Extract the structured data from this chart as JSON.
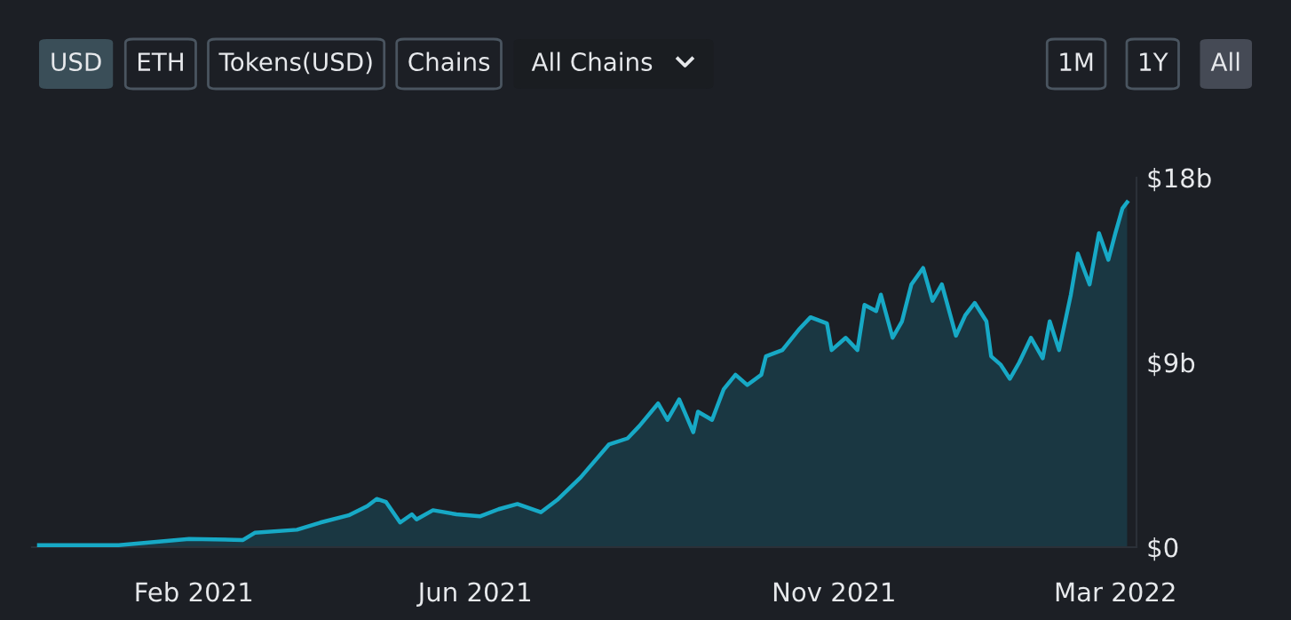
{
  "chart_data": {
    "type": "area",
    "annotations": [
      "USD",
      "ETH",
      "Tokens(USD)",
      "Chains",
      "All Chains",
      "1M",
      "1Y",
      "All"
    ],
    "x": [
      "2020-11-27",
      "2020-12-31",
      "2021-01-30",
      "2021-02-22",
      "2021-02-27",
      "2021-03-17",
      "2021-03-27",
      "2021-04-08",
      "2021-04-16",
      "2021-04-20",
      "2021-04-24",
      "2021-04-27",
      "2021-04-30",
      "2021-05-05",
      "2021-05-07",
      "2021-05-14",
      "2021-05-24",
      "2021-06-03",
      "2021-06-11",
      "2021-06-19",
      "2021-06-29",
      "2021-07-06",
      "2021-07-16",
      "2021-07-28",
      "2021-08-05",
      "2021-08-10",
      "2021-08-18",
      "2021-08-22",
      "2021-08-27",
      "2021-09-02",
      "2021-09-04",
      "2021-09-10",
      "2021-09-15",
      "2021-09-20",
      "2021-09-25",
      "2021-10-01",
      "2021-10-03",
      "2021-10-10",
      "2021-10-17",
      "2021-10-22",
      "2021-10-29",
      "2021-10-31",
      "2021-11-06",
      "2021-11-11",
      "2021-11-14",
      "2021-11-19",
      "2021-11-21",
      "2021-11-26",
      "2021-11-30",
      "2021-12-04",
      "2021-12-09",
      "2021-12-13",
      "2021-12-17",
      "2021-12-23",
      "2021-12-27",
      "2021-12-31",
      "2022-01-05",
      "2022-01-07",
      "2022-01-11",
      "2022-01-15",
      "2022-01-19",
      "2022-01-24",
      "2022-01-29",
      "2022-02-01",
      "2022-02-05",
      "2022-02-10",
      "2022-02-13",
      "2022-02-18",
      "2022-02-22",
      "2022-02-26",
      "2022-03-01",
      "2022-03-04",
      "2022-03-06"
    ],
    "series": [
      {
        "color": "#17a9c6",
        "values": [
          0.1,
          0.1,
          0.4,
          0.35,
          0.7,
          0.85,
          1.2,
          1.55,
          2.0,
          2.35,
          2.2,
          1.7,
          1.2,
          1.6,
          1.35,
          1.8,
          1.6,
          1.5,
          1.85,
          2.1,
          1.7,
          2.3,
          3.4,
          5.0,
          5.3,
          5.9,
          7.0,
          6.2,
          7.2,
          5.6,
          6.6,
          6.2,
          7.7,
          8.4,
          7.9,
          8.4,
          9.3,
          9.6,
          10.6,
          11.2,
          10.9,
          9.6,
          10.2,
          9.6,
          11.8,
          11.5,
          12.3,
          10.2,
          11.0,
          12.8,
          13.6,
          12.0,
          12.8,
          10.3,
          11.3,
          11.9,
          11.0,
          9.3,
          8.9,
          8.2,
          9.0,
          10.2,
          9.2,
          11.0,
          9.6,
          12.3,
          14.3,
          12.8,
          15.3,
          14.0,
          15.3,
          16.5,
          16.8
        ]
      }
    ],
    "xlim": [
      "2020-11-24",
      "2022-03-10"
    ],
    "xticks": [
      {
        "value": "2021-02-01",
        "label": "Feb 2021"
      },
      {
        "value": "2021-06-01",
        "label": "Jun 2021"
      },
      {
        "value": "2021-11-01",
        "label": "Nov 2021"
      },
      {
        "value": "2022-03-01",
        "label": "Mar 2022"
      }
    ],
    "ylim": [
      0,
      18
    ],
    "yticks": [
      {
        "value": 0,
        "label": "$0"
      },
      {
        "value": 9,
        "label": "$9b"
      },
      {
        "value": 18,
        "label": "$18b"
      }
    ],
    "grid": false,
    "marker": "none",
    "line_style": "solid"
  }
}
